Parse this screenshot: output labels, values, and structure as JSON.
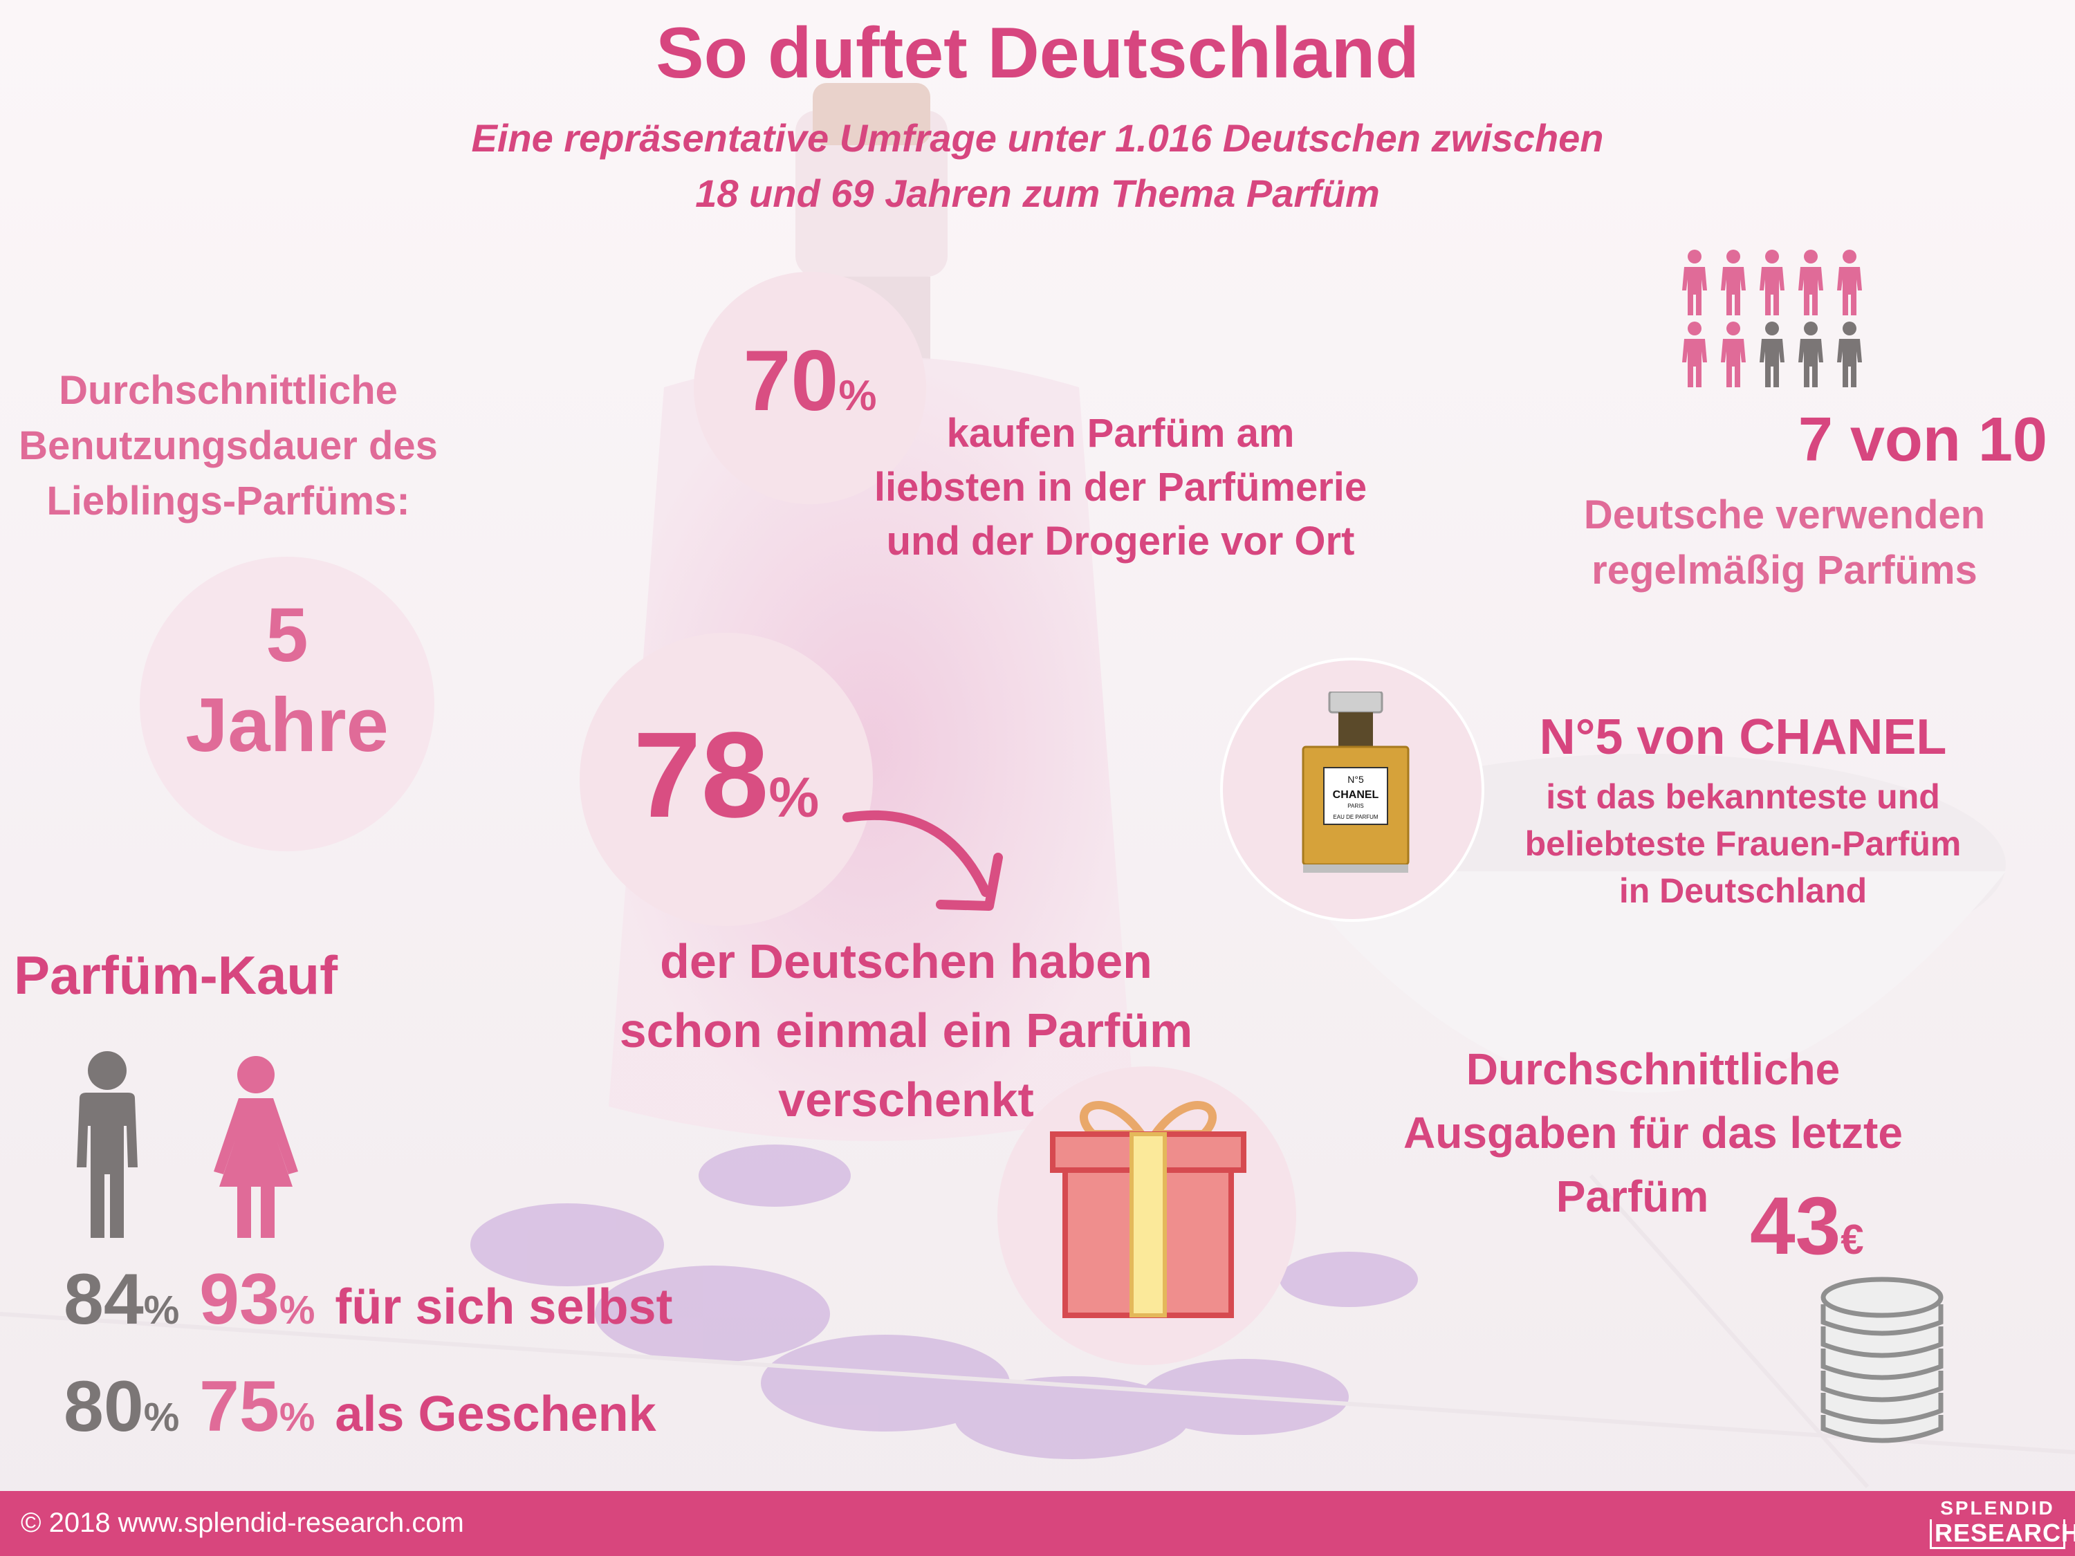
{
  "header": {
    "title": "So duftet Deutschland",
    "subtitle_line1": "Eine repräsentative Umfrage unter 1.016 Deutschen zwischen",
    "subtitle_line2": "18 und 69 Jahren zum Thema Parfüm"
  },
  "usage_duration": {
    "label_line1": "Durchschnittliche",
    "label_line2": "Benutzungsdauer des",
    "label_line3": "Lieblings-Parfüms:",
    "value": "5",
    "unit": "Jahre"
  },
  "shopping_place": {
    "value": "70",
    "unit": "%",
    "text_line1": "kaufen Parfüm am",
    "text_line2": "liebsten in der Parfümerie",
    "text_line3": "und der Drogerie vor Ort"
  },
  "gifting": {
    "value": "78",
    "unit": "%",
    "text_line1": "der Deutschen haben",
    "text_line2": "schon einmal ein Parfüm",
    "text_line3": "verschenkt",
    "icon": "gift-icon"
  },
  "regular_use": {
    "headline": "7 von 10",
    "text_line1": "Deutsche verwenden",
    "text_line2": "regelmäßig Parfüms",
    "filled_people": 7,
    "total_people": 10,
    "icon": "person-icon"
  },
  "chanel": {
    "title": "N°5 von CHANEL",
    "text_line1": "ist das bekannteste und",
    "text_line2": "beliebteste Frauen-Parfüm",
    "text_line3": "in Deutschland",
    "bottle_brand": "CHANEL",
    "bottle_number": "N°5",
    "bottle_city": "PARIS",
    "bottle_type": "EAU DE PARFUM"
  },
  "purchase": {
    "label": "Parfüm-Kauf",
    "male_icon": "male-icon",
    "female_icon": "female-icon",
    "row1": {
      "male": "84",
      "female": "93",
      "unit": "%",
      "text": "für sich selbst"
    },
    "row2": {
      "male": "80",
      "female": "75",
      "unit": "%",
      "text": "als Geschenk"
    }
  },
  "spending": {
    "label_line1": "Durchschnittliche",
    "label_line2": "Ausgaben für das letzte",
    "label_line3": "Parfüm",
    "value": "43",
    "currency": "€",
    "icon": "coin-stack-icon"
  },
  "footer": {
    "copyright": "© 2018 www.splendid-research.com",
    "logo_top": "SPLENDID",
    "logo_bottom": "RESEARCH"
  },
  "colors": {
    "accent": "#d7467f",
    "accent_light": "#e06b98",
    "gray": "#7b7676",
    "footer": "#d8467d",
    "circle": "#f6e3ea"
  }
}
